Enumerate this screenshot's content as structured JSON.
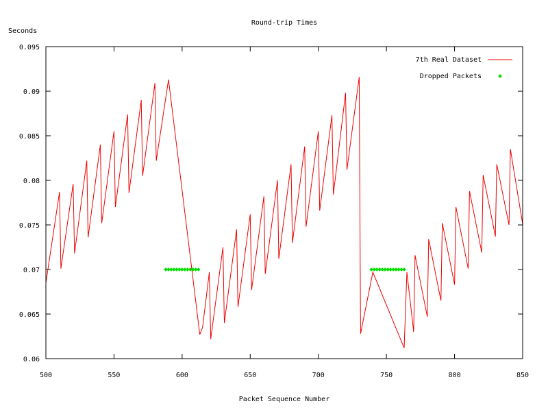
{
  "chart_data": {
    "type": "line",
    "title": "Round-trip Times",
    "xlabel": "Packet Sequence Number",
    "ylabel": "Seconds",
    "xlim": [
      500,
      850
    ],
    "ylim": [
      0.06,
      0.095
    ],
    "x_ticks": [
      {
        "value": 500,
        "label": "500"
      },
      {
        "value": 550,
        "label": "550"
      },
      {
        "value": 600,
        "label": "600"
      },
      {
        "value": 650,
        "label": "650"
      },
      {
        "value": 700,
        "label": "700"
      },
      {
        "value": 750,
        "label": "750"
      },
      {
        "value": 800,
        "label": "800"
      },
      {
        "value": 850,
        "label": "850"
      }
    ],
    "y_ticks": [
      {
        "value": 0.06,
        "label": "0.06"
      },
      {
        "value": 0.065,
        "label": "0.065"
      },
      {
        "value": 0.07,
        "label": "0.07"
      },
      {
        "value": 0.075,
        "label": "0.075"
      },
      {
        "value": 0.08,
        "label": "0.08"
      },
      {
        "value": 0.085,
        "label": "0.085"
      },
      {
        "value": 0.09,
        "label": "0.09"
      },
      {
        "value": 0.095,
        "label": "0.095"
      }
    ],
    "grid": false,
    "legend_position": "top-right",
    "series": [
      {
        "name": "7th Real Dataset",
        "style": "line",
        "color": "#ee0000",
        "x": [
          500,
          510,
          511,
          520,
          521,
          530,
          531,
          540,
          541,
          550,
          551,
          560,
          561,
          570,
          571,
          580,
          581,
          590,
          613,
          615,
          620,
          621,
          630,
          631,
          640,
          641,
          650,
          651,
          660,
          661,
          670,
          671,
          680,
          681,
          690,
          691,
          700,
          701,
          710,
          711,
          720,
          721,
          730,
          731,
          740,
          763,
          765,
          770,
          771,
          780,
          781,
          790,
          791,
          800,
          801,
          810,
          811,
          820,
          821,
          830,
          831,
          840,
          841,
          850,
          850.5
        ],
        "y": [
          0.0685,
          0.0787,
          0.0701,
          0.0796,
          0.0718,
          0.0822,
          0.0736,
          0.084,
          0.0752,
          0.0855,
          0.077,
          0.0874,
          0.0786,
          0.089,
          0.0805,
          0.0909,
          0.0822,
          0.0913,
          0.0627,
          0.0635,
          0.0697,
          0.0622,
          0.0725,
          0.064,
          0.0745,
          0.0658,
          0.0762,
          0.0677,
          0.0782,
          0.0695,
          0.08,
          0.0712,
          0.0818,
          0.073,
          0.0838,
          0.0748,
          0.0855,
          0.0766,
          0.0873,
          0.0784,
          0.0898,
          0.0812,
          0.0916,
          0.0628,
          0.0697,
          0.0612,
          0.0697,
          0.063,
          0.0716,
          0.0647,
          0.0734,
          0.0665,
          0.0752,
          0.0683,
          0.077,
          0.0701,
          0.0788,
          0.0719,
          0.0806,
          0.0737,
          0.0818,
          0.075,
          0.0835,
          0.0751,
          0.0751
        ]
      },
      {
        "name": "Dropped Packets",
        "style": "points",
        "color": "#00dd00",
        "x": [
          588,
          590,
          592,
          594,
          596,
          598,
          600,
          602,
          604,
          606,
          608,
          610,
          612,
          739,
          741,
          743,
          745,
          747,
          749,
          751,
          753,
          755,
          757,
          759,
          761,
          763
        ],
        "y": [
          0.07,
          0.07,
          0.07,
          0.07,
          0.07,
          0.07,
          0.07,
          0.07,
          0.07,
          0.07,
          0.07,
          0.07,
          0.07,
          0.07,
          0.07,
          0.07,
          0.07,
          0.07,
          0.07,
          0.07,
          0.07,
          0.07,
          0.07,
          0.07,
          0.07,
          0.07
        ]
      }
    ]
  }
}
